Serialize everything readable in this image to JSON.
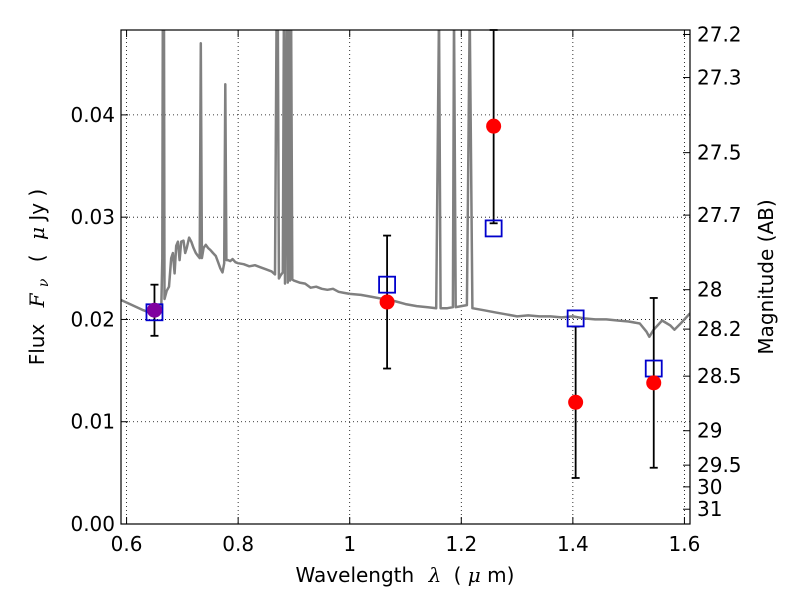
{
  "chart_data": {
    "type": "scatter",
    "title": "",
    "xlabel_text": "Wavelength",
    "xlabel_symbol": "λ",
    "xlabel_unit_open": "(",
    "xlabel_unit_mu": "μ",
    "xlabel_unit_rest": "m)",
    "ylabel_text": "Flux",
    "ylabel_symbol": "F",
    "ylabel_subscript": "ν",
    "ylabel_unit_open": "(",
    "ylabel_unit_mu": "μ",
    "ylabel_unit_rest": "Jy )",
    "ylabel_right": "Magnitude (AB)",
    "xlim": [
      0.59,
      1.61
    ],
    "ylim": [
      0.0,
      0.0483
    ],
    "grid": true,
    "x_ticks": [
      {
        "value": 0.6,
        "label": "0.6"
      },
      {
        "value": 0.8,
        "label": "0.8"
      },
      {
        "value": 1.0,
        "label": "1"
      },
      {
        "value": 1.2,
        "label": "1.2"
      },
      {
        "value": 1.4,
        "label": "1.4"
      },
      {
        "value": 1.6,
        "label": "1.6"
      }
    ],
    "y_ticks": [
      {
        "value": 0.0,
        "label": "0.00"
      },
      {
        "value": 0.01,
        "label": "0.01"
      },
      {
        "value": 0.02,
        "label": "0.02"
      },
      {
        "value": 0.03,
        "label": "0.03"
      },
      {
        "value": 0.04,
        "label": "0.04"
      }
    ],
    "magnitude_ticks": [
      {
        "value": 27.2,
        "label": "27.2"
      },
      {
        "value": 27.3,
        "label": "27.3"
      },
      {
        "value": 27.5,
        "label": "27.5"
      },
      {
        "value": 27.7,
        "label": "27.7"
      },
      {
        "value": 28.0,
        "label": "28"
      },
      {
        "value": 28.2,
        "label": "28.2"
      },
      {
        "value": 28.5,
        "label": "28.5"
      },
      {
        "value": 29.0,
        "label": "29"
      },
      {
        "value": 29.5,
        "label": "29.5"
      },
      {
        "value": 30.0,
        "label": "30"
      },
      {
        "value": 31.0,
        "label": "31"
      }
    ],
    "ab_zeropoint_ujy": 23.9,
    "observed": {
      "color": "#ff0000",
      "points": [
        {
          "x": 0.65,
          "y": 0.0209,
          "yerr": [
            0.0184,
            0.0234
          ]
        },
        {
          "x": 1.067,
          "y": 0.0217,
          "yerr": [
            0.0152,
            0.0282
          ]
        },
        {
          "x": 1.258,
          "y": 0.0389,
          "yerr": [
            0.0294,
            0.0484
          ]
        },
        {
          "x": 1.405,
          "y": 0.0119,
          "yerr": [
            0.0045,
            0.0193
          ]
        },
        {
          "x": 1.545,
          "y": 0.0138,
          "yerr": [
            0.0055,
            0.0221
          ]
        }
      ]
    },
    "model_photometry": {
      "color": "#0000cc",
      "points": [
        {
          "x": 0.65,
          "y": 0.0207
        },
        {
          "x": 1.067,
          "y": 0.0234
        },
        {
          "x": 1.258,
          "y": 0.0289
        },
        {
          "x": 1.405,
          "y": 0.0201
        },
        {
          "x": 1.545,
          "y": 0.0152
        }
      ]
    },
    "overlap_color": "#8000a0",
    "spectrum": {
      "color": "#808080",
      "points": [
        [
          0.59,
          0.0219
        ],
        [
          0.61,
          0.0214
        ],
        [
          0.63,
          0.0209
        ],
        [
          0.645,
          0.0206
        ],
        [
          0.655,
          0.0206
        ],
        [
          0.662,
          0.0207
        ],
        [
          0.664,
          0.026
        ],
        [
          0.665,
          0.049
        ],
        [
          0.667,
          0.049
        ],
        [
          0.668,
          0.022
        ],
        [
          0.672,
          0.0228
        ],
        [
          0.676,
          0.0232
        ],
        [
          0.68,
          0.026
        ],
        [
          0.683,
          0.0265
        ],
        [
          0.686,
          0.0245
        ],
        [
          0.689,
          0.0272
        ],
        [
          0.692,
          0.0276
        ],
        [
          0.695,
          0.0258
        ],
        [
          0.698,
          0.0276
        ],
        [
          0.702,
          0.0277
        ],
        [
          0.705,
          0.0265
        ],
        [
          0.708,
          0.027
        ],
        [
          0.712,
          0.028
        ],
        [
          0.716,
          0.0276
        ],
        [
          0.72,
          0.027
        ],
        [
          0.724,
          0.0265
        ],
        [
          0.728,
          0.0262
        ],
        [
          0.731,
          0.026
        ],
        [
          0.733,
          0.047
        ],
        [
          0.735,
          0.026
        ],
        [
          0.738,
          0.027
        ],
        [
          0.742,
          0.0273
        ],
        [
          0.746,
          0.027
        ],
        [
          0.75,
          0.0268
        ],
        [
          0.755,
          0.0265
        ],
        [
          0.76,
          0.0262
        ],
        [
          0.764,
          0.0256
        ],
        [
          0.768,
          0.025
        ],
        [
          0.772,
          0.0246
        ],
        [
          0.775,
          0.0255
        ],
        [
          0.777,
          0.043
        ],
        [
          0.779,
          0.0258
        ],
        [
          0.782,
          0.0258
        ],
        [
          0.786,
          0.0257
        ],
        [
          0.79,
          0.0259
        ],
        [
          0.795,
          0.0256
        ],
        [
          0.8,
          0.0255
        ],
        [
          0.81,
          0.0254
        ],
        [
          0.82,
          0.0252
        ],
        [
          0.83,
          0.0253
        ],
        [
          0.84,
          0.0251
        ],
        [
          0.85,
          0.0249
        ],
        [
          0.86,
          0.0247
        ],
        [
          0.866,
          0.0244
        ],
        [
          0.869,
          0.05
        ],
        [
          0.871,
          0.05
        ],
        [
          0.873,
          0.024
        ],
        [
          0.876,
          0.0243
        ],
        [
          0.88,
          0.0246
        ],
        [
          0.882,
          0.05
        ],
        [
          0.884,
          0.0235
        ],
        [
          0.887,
          0.05
        ],
        [
          0.889,
          0.0236
        ],
        [
          0.891,
          0.05
        ],
        [
          0.893,
          0.0238
        ],
        [
          0.895,
          0.05
        ],
        [
          0.897,
          0.0239
        ],
        [
          0.9,
          0.0238
        ],
        [
          0.91,
          0.0236
        ],
        [
          0.92,
          0.0235
        ],
        [
          0.93,
          0.0231
        ],
        [
          0.94,
          0.0232
        ],
        [
          0.95,
          0.023
        ],
        [
          0.96,
          0.0229
        ],
        [
          0.97,
          0.023
        ],
        [
          0.98,
          0.0227
        ],
        [
          0.99,
          0.0226
        ],
        [
          1.0,
          0.0225
        ],
        [
          1.02,
          0.0224
        ],
        [
          1.04,
          0.0222
        ],
        [
          1.06,
          0.022
        ],
        [
          1.08,
          0.0218
        ],
        [
          1.1,
          0.0215
        ],
        [
          1.12,
          0.0213
        ],
        [
          1.14,
          0.0212
        ],
        [
          1.155,
          0.0211
        ],
        [
          1.16,
          0.05
        ],
        [
          1.163,
          0.0211
        ],
        [
          1.175,
          0.0211
        ],
        [
          1.185,
          0.0212
        ],
        [
          1.187,
          0.05
        ],
        [
          1.19,
          0.0212
        ],
        [
          1.2,
          0.0213
        ],
        [
          1.21,
          0.0214
        ],
        [
          1.215,
          0.05
        ],
        [
          1.22,
          0.0211
        ],
        [
          1.24,
          0.0209
        ],
        [
          1.26,
          0.0207
        ],
        [
          1.28,
          0.0205
        ],
        [
          1.3,
          0.0203
        ],
        [
          1.32,
          0.0204
        ],
        [
          1.34,
          0.0203
        ],
        [
          1.36,
          0.0203
        ],
        [
          1.38,
          0.0202
        ],
        [
          1.4,
          0.0203
        ],
        [
          1.42,
          0.0201
        ],
        [
          1.44,
          0.02
        ],
        [
          1.46,
          0.02
        ],
        [
          1.48,
          0.0199
        ],
        [
          1.5,
          0.0198
        ],
        [
          1.52,
          0.0196
        ],
        [
          1.532,
          0.0188
        ],
        [
          1.537,
          0.0183
        ],
        [
          1.545,
          0.019
        ],
        [
          1.56,
          0.0199
        ],
        [
          1.575,
          0.0194
        ],
        [
          1.582,
          0.019
        ],
        [
          1.595,
          0.0197
        ],
        [
          1.61,
          0.0206
        ]
      ]
    }
  }
}
